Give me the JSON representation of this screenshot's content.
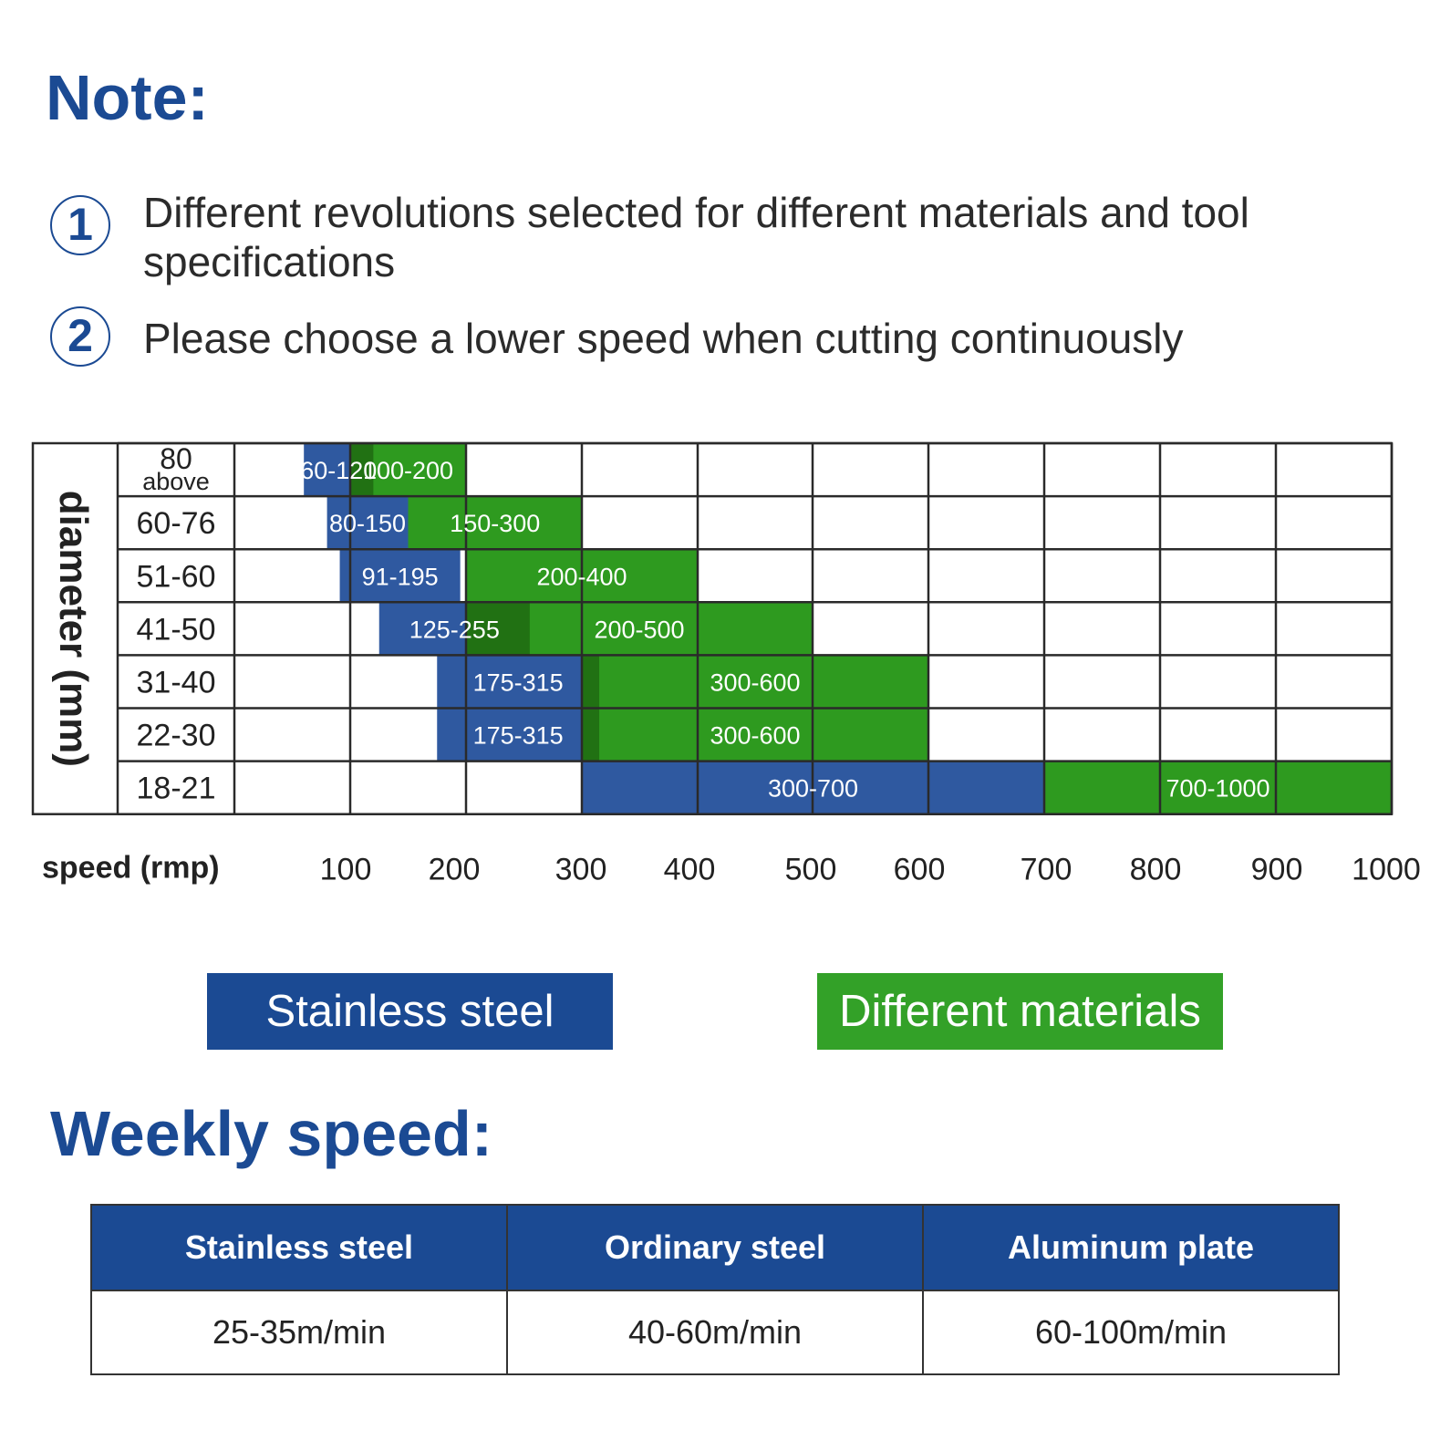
{
  "note": {
    "title": "Note:",
    "items": [
      {
        "num": "1",
        "text": "Different revolutions selected for different materials and tool specifications"
      },
      {
        "num": "2",
        "text": "Please choose a lower speed when cutting continuously"
      }
    ]
  },
  "chart_data": {
    "type": "bar",
    "orientation": "horizontal-range",
    "ylabel": "diameter (mm)",
    "xlabel": "speed (rmp)",
    "x_ticks": [
      "100",
      "200",
      "300",
      "400",
      "500",
      "600",
      "700",
      "800",
      "900",
      "1000"
    ],
    "categories": [
      "80 above",
      "60-76",
      "51-60",
      "41-50",
      "31-40",
      "22-30",
      "18-21"
    ],
    "category_lines": [
      [
        "80",
        "above"
      ],
      [
        "60-76"
      ],
      [
        "51-60"
      ],
      [
        "41-50"
      ],
      [
        "31-40"
      ],
      [
        "22-30"
      ],
      [
        "18-21"
      ]
    ],
    "series": [
      {
        "name": "Stainless steel",
        "color": "#2f59a0",
        "ranges": [
          {
            "category": "80 above",
            "min": 60,
            "max": 120,
            "label": "60-120"
          },
          {
            "category": "60-76",
            "min": 80,
            "max": 150,
            "label": "80-150"
          },
          {
            "category": "51-60",
            "min": 91,
            "max": 195,
            "label": "91-195"
          },
          {
            "category": "41-50",
            "min": 125,
            "max": 255,
            "label": "125-255"
          },
          {
            "category": "31-40",
            "min": 175,
            "max": 315,
            "label": "175-315"
          },
          {
            "category": "22-30",
            "min": 175,
            "max": 315,
            "label": "175-315"
          },
          {
            "category": "18-21",
            "min": 300,
            "max": 700,
            "label": "300-700"
          }
        ]
      },
      {
        "name": "Different materials",
        "color": "#2e9a1f",
        "ranges": [
          {
            "category": "80 above",
            "min": 100,
            "max": 200,
            "label": "100-200"
          },
          {
            "category": "60-76",
            "min": 150,
            "max": 300,
            "label": "150-300"
          },
          {
            "category": "51-60",
            "min": 200,
            "max": 400,
            "label": "200-400"
          },
          {
            "category": "41-50",
            "min": 200,
            "max": 500,
            "label": "200-500"
          },
          {
            "category": "31-40",
            "min": 300,
            "max": 600,
            "label": "300-600"
          },
          {
            "category": "22-30",
            "min": 300,
            "max": 600,
            "label": "300-600"
          },
          {
            "category": "18-21",
            "min": 700,
            "max": 1000,
            "label": "700-1000"
          }
        ]
      }
    ],
    "overlap_color": "#1e6a12",
    "grid": true
  },
  "legend": [
    {
      "label": "Stainless steel",
      "color": "#1b4a93"
    },
    {
      "label": "Different materials",
      "color": "#33a128"
    }
  ],
  "weekly": {
    "title": "Weekly speed:",
    "headers": [
      "Stainless steel",
      "Ordinary steel",
      "Aluminum plate"
    ],
    "values": [
      "25-35m/min",
      "40-60m/min",
      "60-100m/min"
    ]
  }
}
